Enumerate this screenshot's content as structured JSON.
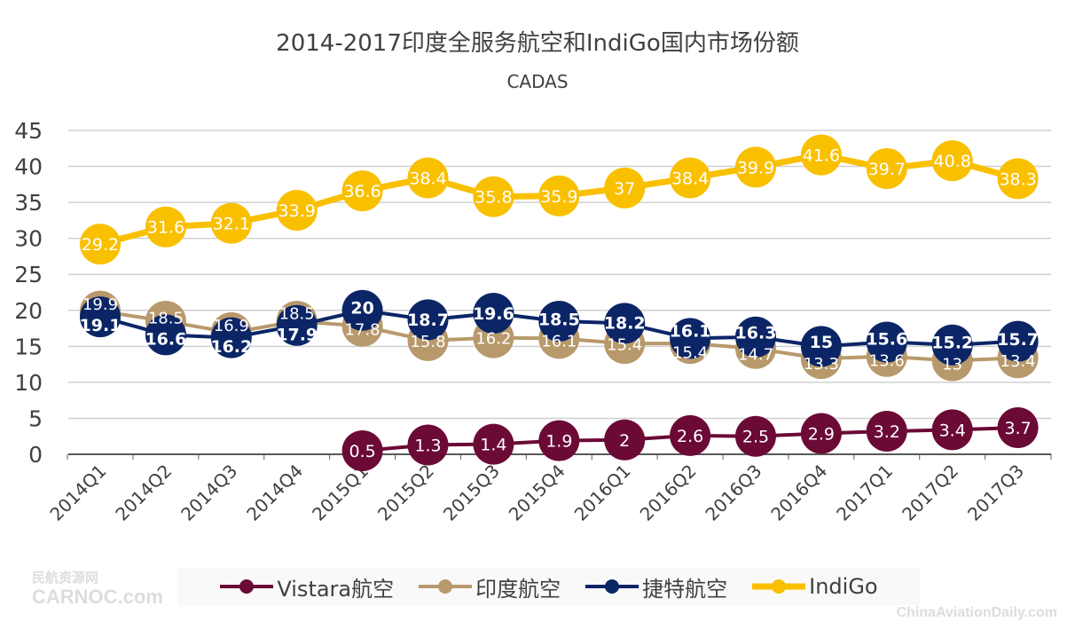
{
  "chart_data": {
    "type": "line",
    "title": "2014-2017印度全服务航空和IndiGo国内市场份额",
    "subtitle": "CADAS",
    "categories": [
      "2014Q1",
      "2014Q2",
      "2014Q3",
      "2014Q4",
      "2015Q1",
      "2015Q2",
      "2015Q3",
      "2015Q4",
      "2016Q1",
      "2016Q2",
      "2016Q3",
      "2016Q4",
      "2017Q1",
      "2017Q2",
      "2017Q3"
    ],
    "ylim": [
      0,
      45
    ],
    "yticks": [
      0,
      5,
      10,
      15,
      20,
      25,
      30,
      35,
      40,
      45
    ],
    "grid": true,
    "legend_position": "bottom",
    "series": [
      {
        "name": "Vistara航空",
        "color": "#6b0a35",
        "values": [
          null,
          null,
          null,
          null,
          0.5,
          1.3,
          1.4,
          1.9,
          2,
          2.6,
          2.5,
          2.9,
          3.2,
          3.4,
          3.7
        ]
      },
      {
        "name": "印度航空",
        "color": "#b8996b",
        "values": [
          19.9,
          18.5,
          16.9,
          18.5,
          17.8,
          15.8,
          16.2,
          16.1,
          15.4,
          15.4,
          14.7,
          13.3,
          13.6,
          13,
          13.4
        ]
      },
      {
        "name": "捷特航空",
        "color": "#0b2566",
        "values": [
          19.1,
          16.6,
          16.2,
          17.9,
          20,
          18.7,
          19.6,
          18.5,
          18.2,
          16.1,
          16.3,
          15,
          15.6,
          15.2,
          15.7
        ]
      },
      {
        "name": "IndiGo",
        "color": "#f9c000",
        "values": [
          29.2,
          31.6,
          32.1,
          33.9,
          36.6,
          38.4,
          35.8,
          35.9,
          37,
          38.4,
          39.9,
          41.6,
          39.7,
          40.8,
          38.3
        ]
      }
    ]
  },
  "watermarks": {
    "left_top": "民航资源网",
    "left_bottom": "CARNOC.com",
    "right": "ChinaAviationDaily.com"
  }
}
